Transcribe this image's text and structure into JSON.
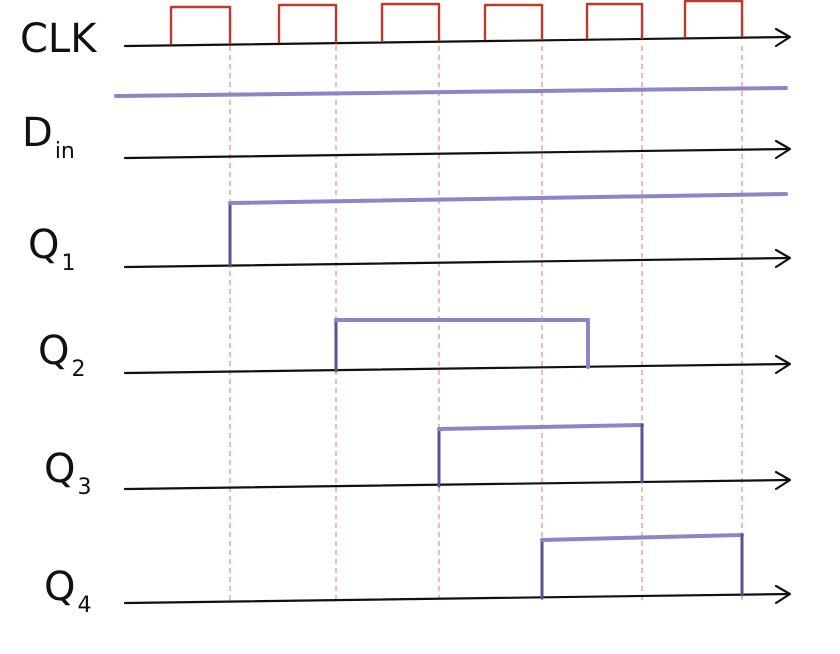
{
  "colors": {
    "axis": "#111111",
    "clock": "#c0392b",
    "signal": "#8b86c4",
    "guide": "#f08a85",
    "edge": "#5a5292"
  },
  "signals": [
    {
      "id": "clk",
      "label": "CLK",
      "subscript": ""
    },
    {
      "id": "din",
      "label": "D",
      "subscript": "in"
    },
    {
      "id": "q1",
      "label": "Q",
      "subscript": "1"
    },
    {
      "id": "q2",
      "label": "Q",
      "subscript": "2"
    },
    {
      "id": "q3",
      "label": "Q",
      "subscript": "3"
    },
    {
      "id": "q4",
      "label": "Q",
      "subscript": "4"
    }
  ],
  "clock_pulses": 6,
  "waveforms": {
    "din": {
      "high_from_edge": null,
      "high_to_edge": null,
      "high_throughout": true
    },
    "q1": {
      "high_from_edge": 1,
      "high_to_edge": null
    },
    "q2": {
      "high_from_edge": 2,
      "high_to_edge": 4.5
    },
    "q3": {
      "high_from_edge": 3,
      "high_to_edge": 5
    },
    "q4": {
      "high_from_edge": 4,
      "high_to_edge": 6
    }
  }
}
